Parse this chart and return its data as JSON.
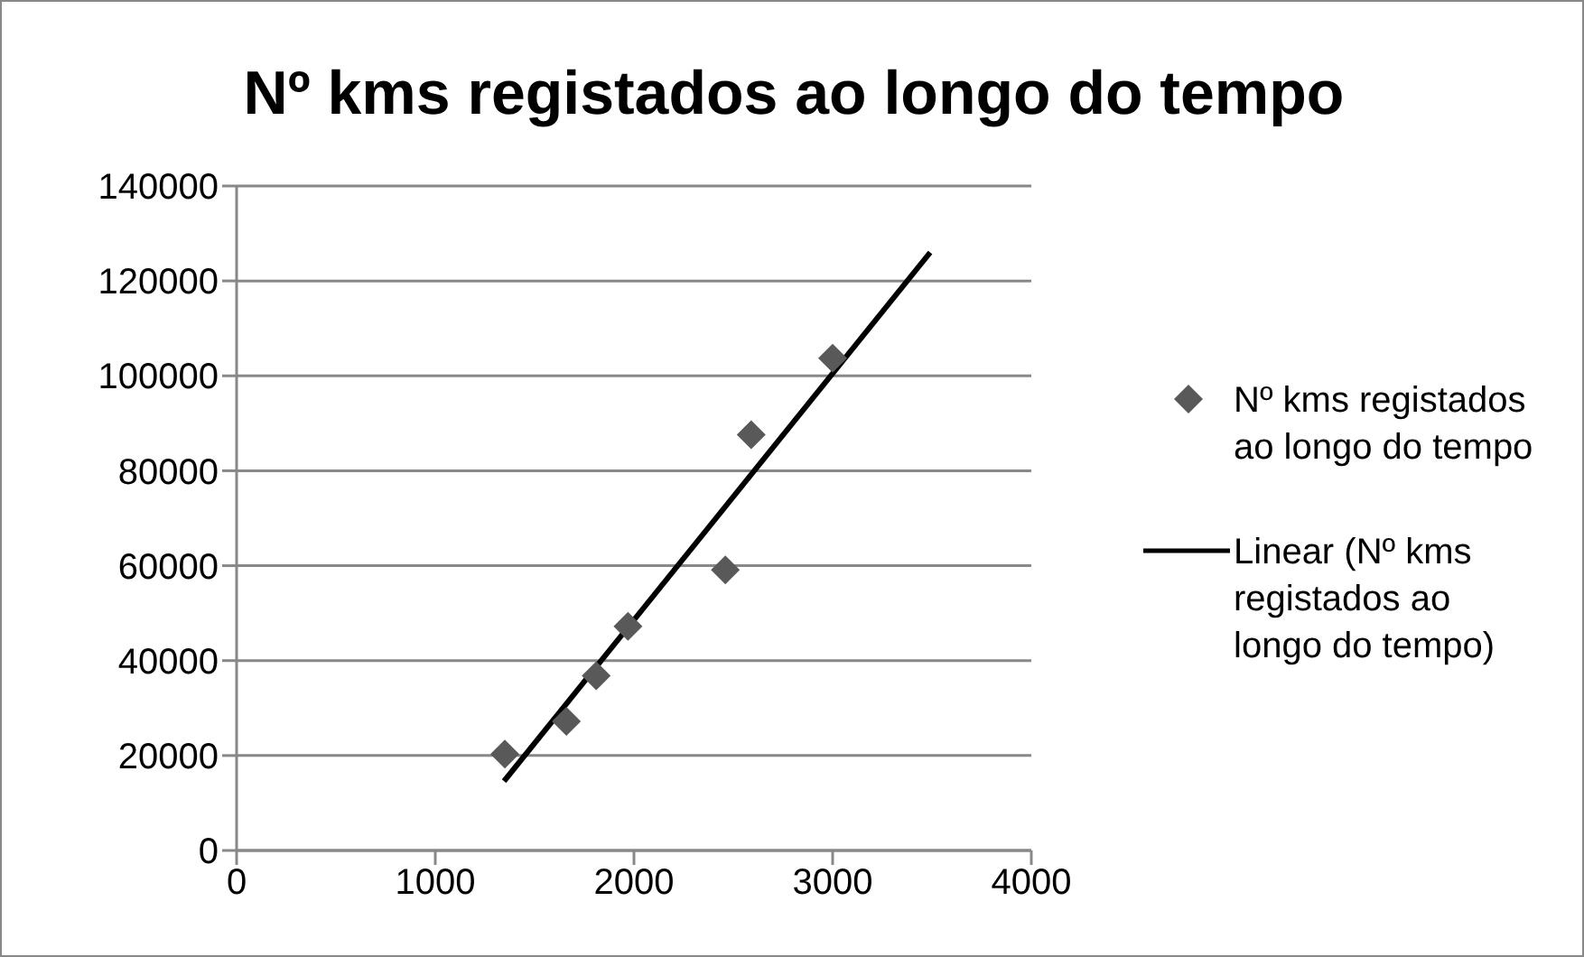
{
  "chart_data": {
    "type": "scatter",
    "title": "Nº kms registados ao longo do tempo",
    "series": [
      {
        "name": "Nº kms registados ao longo do tempo",
        "type": "scatter",
        "color": "#595959",
        "marker": "diamond",
        "x": [
          1350,
          1660,
          1810,
          1970,
          2460,
          2590,
          3000
        ],
        "values": [
          20300,
          27200,
          36800,
          47200,
          59100,
          87600,
          103700
        ]
      },
      {
        "name": "Linear (Nº kms registados ao longo do tempo)",
        "type": "line",
        "color": "#000000",
        "marker": "none",
        "line_style": "solid",
        "x": [
          1346,
          3491
        ],
        "values": [
          14600,
          126000
        ]
      }
    ],
    "xlim": [
      0,
      4000
    ],
    "xticks": [
      0,
      1000,
      2000,
      3000,
      4000
    ],
    "ylim": [
      0,
      140000
    ],
    "yticks": [
      0,
      20000,
      40000,
      60000,
      80000,
      100000,
      120000,
      140000
    ],
    "grid": "y",
    "legend": "right"
  }
}
